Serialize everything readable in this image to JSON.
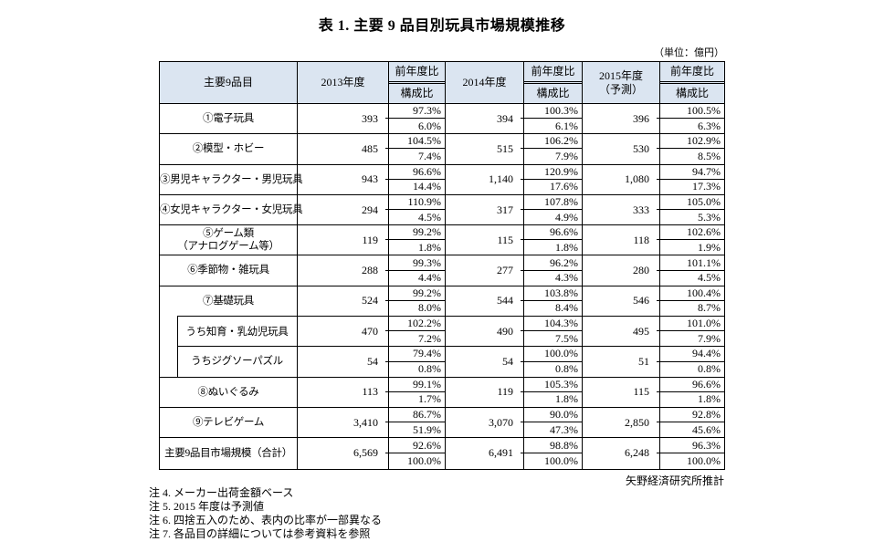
{
  "page": {
    "title": "表 1. 主要 9 品目別玩具市場規模推移",
    "unit_label": "（単位：億円）",
    "source": "矢野経済研究所推計",
    "notes": [
      "注 4. メーカー出荷金額ベース",
      "注 5. 2015 年度は予測値",
      "注 6. 四捨五入のため、表内の比率が一部異なる",
      "注 7. 各品目の詳細については参考資料を参照"
    ]
  },
  "colors": {
    "header_bg": "#dbe5f1",
    "border": "#000000"
  },
  "table": {
    "header": {
      "category": "主要9品目",
      "fy2013": "2013年度",
      "fy2014": "2014年度",
      "fy2015_line1": "2015年度",
      "fy2015_line2": "（予測）",
      "yoy": "前年度比",
      "share": "構成比"
    },
    "rows": [
      {
        "label": "①電子玩具",
        "v13": "393",
        "yoy13": "97.3%",
        "sh13": "6.0%",
        "v14": "394",
        "yoy14": "100.3%",
        "sh14": "6.1%",
        "v15": "396",
        "yoy15": "100.5%",
        "sh15": "6.3%"
      },
      {
        "label": "②模型・ホビー",
        "v13": "485",
        "yoy13": "104.5%",
        "sh13": "7.4%",
        "v14": "515",
        "yoy14": "106.2%",
        "sh14": "7.9%",
        "v15": "530",
        "yoy15": "102.9%",
        "sh15": "8.5%"
      },
      {
        "label": "③男児キャラクター・男児玩具",
        "v13": "943",
        "yoy13": "96.6%",
        "sh13": "14.4%",
        "v14": "1,140",
        "yoy14": "120.9%",
        "sh14": "17.6%",
        "v15": "1,080",
        "yoy15": "94.7%",
        "sh15": "17.3%"
      },
      {
        "label": "④女児キャラクター・女児玩具",
        "v13": "294",
        "yoy13": "110.9%",
        "sh13": "4.5%",
        "v14": "317",
        "yoy14": "107.8%",
        "sh14": "4.9%",
        "v15": "333",
        "yoy15": "105.0%",
        "sh15": "5.3%"
      },
      {
        "label": "⑤ゲーム類",
        "label2": "（アナログゲーム等）",
        "v13": "119",
        "yoy13": "99.2%",
        "sh13": "1.8%",
        "v14": "115",
        "yoy14": "96.6%",
        "sh14": "1.8%",
        "v15": "118",
        "yoy15": "102.6%",
        "sh15": "1.9%"
      },
      {
        "label": "⑥季節物・雑玩具",
        "v13": "288",
        "yoy13": "99.3%",
        "sh13": "4.4%",
        "v14": "277",
        "yoy14": "96.2%",
        "sh14": "4.3%",
        "v15": "280",
        "yoy15": "101.1%",
        "sh15": "4.5%"
      },
      {
        "label": "⑦基礎玩具",
        "group_head": true,
        "v13": "524",
        "yoy13": "99.2%",
        "sh13": "8.0%",
        "v14": "544",
        "yoy14": "103.8%",
        "sh14": "8.4%",
        "v15": "546",
        "yoy15": "100.4%",
        "sh15": "8.7%"
      },
      {
        "label": "うち知育・乳幼児玩具",
        "sub": true,
        "v13": "470",
        "yoy13": "102.2%",
        "sh13": "7.2%",
        "v14": "490",
        "yoy14": "104.3%",
        "sh14": "7.5%",
        "v15": "495",
        "yoy15": "101.0%",
        "sh15": "7.9%"
      },
      {
        "label": "うちジグソーパズル",
        "sub": true,
        "sub_last": true,
        "v13": "54",
        "yoy13": "79.4%",
        "sh13": "0.8%",
        "v14": "54",
        "yoy14": "100.0%",
        "sh14": "0.8%",
        "v15": "51",
        "yoy15": "94.4%",
        "sh15": "0.8%"
      },
      {
        "label": "⑧ぬいぐるみ",
        "v13": "113",
        "yoy13": "99.1%",
        "sh13": "1.7%",
        "v14": "119",
        "yoy14": "105.3%",
        "sh14": "1.8%",
        "v15": "115",
        "yoy15": "96.6%",
        "sh15": "1.8%"
      },
      {
        "label": "⑨テレビゲーム",
        "v13": "3,410",
        "yoy13": "86.7%",
        "sh13": "51.9%",
        "v14": "3,070",
        "yoy14": "90.0%",
        "sh14": "47.3%",
        "v15": "2,850",
        "yoy15": "92.8%",
        "sh15": "45.6%"
      },
      {
        "label": "主要9品目市場規模（合計）",
        "total": true,
        "v13": "6,569",
        "yoy13": "92.6%",
        "sh13": "100.0%",
        "v14": "6,491",
        "yoy14": "98.8%",
        "sh14": "100.0%",
        "v15": "6,248",
        "yoy15": "96.3%",
        "sh15": "100.0%"
      }
    ]
  }
}
